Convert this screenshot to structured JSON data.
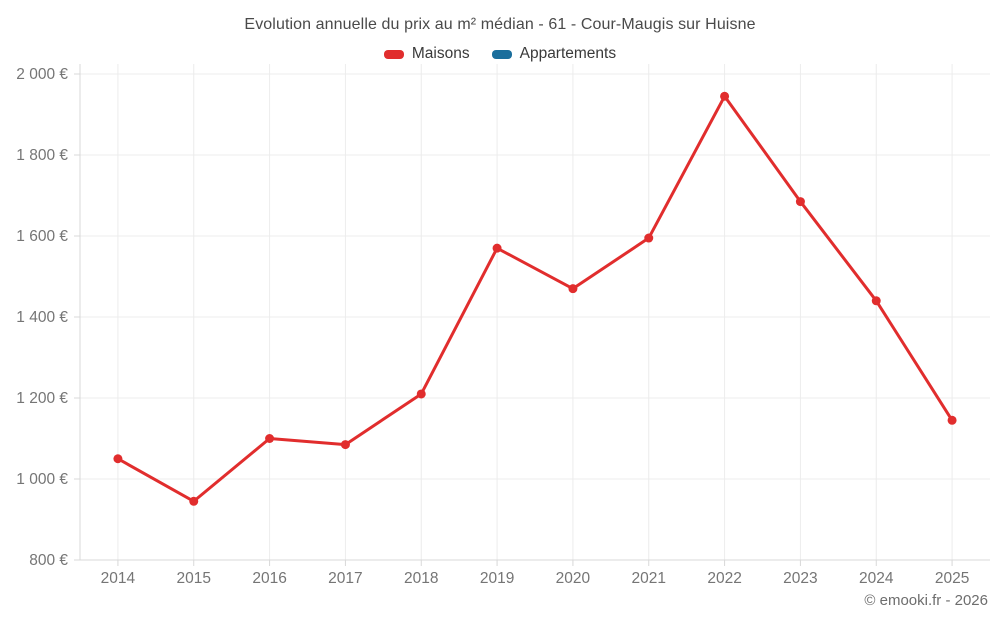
{
  "title": "Evolution annuelle du prix au m² médian - 61 - Cour-Maugis sur Huisne",
  "footer": "© emooki.fr - 2026",
  "colors": {
    "background": "#ffffff",
    "grid": "#ececec",
    "axis": "#d8d8d8",
    "tick_text": "#757575",
    "title_text": "#4a4a4a",
    "legend_text": "#3a3a3a",
    "footer_text": "#6d6d6d",
    "maisons": "#e12d2d",
    "appartements": "#1a6e9c"
  },
  "legend": [
    {
      "label": "Maisons",
      "color": "#e12d2d"
    },
    {
      "label": "Appartements",
      "color": "#1a6e9c"
    }
  ],
  "chart_data": {
    "type": "line",
    "title": "Evolution annuelle du prix au m² médian - 61 - Cour-Maugis sur Huisne",
    "categories": [
      "2014",
      "2015",
      "2016",
      "2017",
      "2018",
      "2019",
      "2020",
      "2021",
      "2022",
      "2023",
      "2024",
      "2025"
    ],
    "series": [
      {
        "name": "Maisons",
        "color": "#e12d2d",
        "values": [
          1050,
          945,
          1100,
          1085,
          1210,
          1570,
          1470,
          1595,
          1945,
          1685,
          1440,
          1145
        ]
      },
      {
        "name": "Appartements",
        "color": "#1a6e9c",
        "values": []
      }
    ],
    "xlabel": "",
    "ylabel": "",
    "ylim": [
      800,
      2000
    ],
    "yticks": [
      800,
      1000,
      1200,
      1400,
      1600,
      1800,
      2000
    ],
    "ytick_labels": [
      "800 €",
      "1 000 €",
      "1 200 €",
      "1 400 €",
      "1 600 €",
      "1 800 €",
      "2 000 €"
    ],
    "grid": true,
    "legend_position": "top",
    "currency_suffix": " €"
  }
}
